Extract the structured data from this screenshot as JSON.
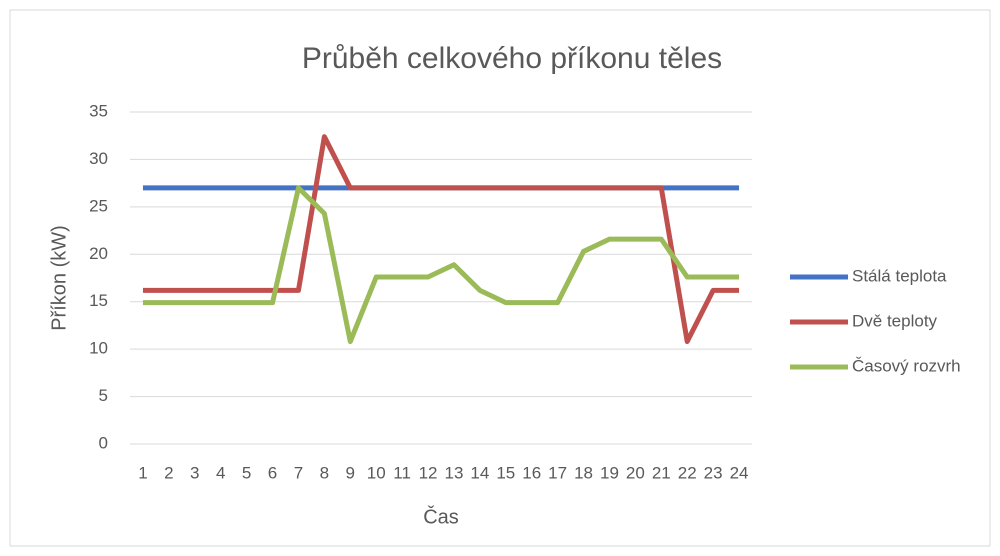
{
  "chart_data": {
    "type": "line",
    "title": "Průběh celkového příkonu těles",
    "x_label": "Čas",
    "y_label": "Příkon (kW)",
    "categories": [
      "1",
      "2",
      "3",
      "4",
      "5",
      "6",
      "7",
      "8",
      "9",
      "10",
      "11",
      "12",
      "13",
      "14",
      "15",
      "16",
      "17",
      "18",
      "19",
      "20",
      "21",
      "22",
      "23",
      "24"
    ],
    "series": [
      {
        "name": "Stálá teplota",
        "color": "#4472c4",
        "values": [
          27,
          27,
          27,
          27,
          27,
          27,
          27,
          27,
          27,
          27,
          27,
          27,
          27,
          27,
          27,
          27,
          27,
          27,
          27,
          27,
          27,
          27,
          27,
          27
        ]
      },
      {
        "name": "Dvě teploty",
        "color": "#c0504d",
        "values": [
          16.2,
          16.2,
          16.2,
          16.2,
          16.2,
          16.2,
          16.2,
          32.4,
          27,
          27,
          27,
          27,
          27,
          27,
          27,
          27,
          27,
          27,
          27,
          27,
          27,
          10.8,
          16.2,
          16.2
        ]
      },
      {
        "name": "Časový rozvrh",
        "color": "#9bbb59",
        "values": [
          14.9,
          14.9,
          14.9,
          14.9,
          14.9,
          14.9,
          27,
          24.3,
          10.8,
          17.6,
          17.6,
          17.6,
          18.9,
          16.2,
          14.9,
          14.9,
          14.9,
          20.3,
          21.6,
          21.6,
          21.6,
          17.6,
          17.6,
          17.6
        ]
      }
    ],
    "ylim": [
      0,
      35
    ],
    "yticks": [
      0,
      5,
      10,
      15,
      20,
      25,
      30,
      35
    ],
    "grid": true,
    "legend": "right"
  }
}
